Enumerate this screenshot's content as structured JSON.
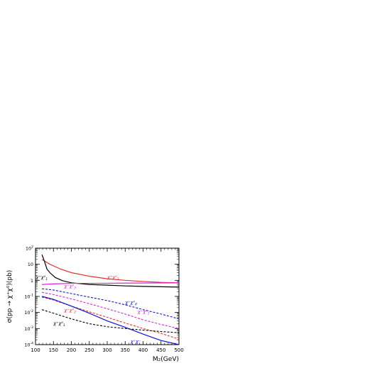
{
  "chart_data": {
    "type": "line",
    "xlabel": "M$_2$(GeV)",
    "ylabel": "σ(pp → χ⁺χ⁰)(pb)",
    "xlim": [
      100,
      500
    ],
    "ylim_log10": [
      -4,
      2
    ],
    "yscale": "log",
    "grid": false,
    "x_ticks": [
      "100",
      "150",
      "200",
      "250",
      "300",
      "350",
      "400",
      "450",
      "500"
    ],
    "y_ticks": [
      {
        "base": "10",
        "exp": "2",
        "value": 100
      },
      {
        "base": "10",
        "exp": "",
        "value": 10
      },
      {
        "base": "1",
        "exp": "",
        "value": 1
      },
      {
        "base": "10",
        "exp": "-1",
        "value": 0.1
      },
      {
        "base": "10",
        "exp": "-2",
        "value": 0.01
      },
      {
        "base": "10",
        "exp": "-3",
        "value": 0.001
      },
      {
        "base": "10",
        "exp": "-4",
        "value": 0.0001
      }
    ],
    "series": [
      {
        "id": "red-solid",
        "color": "#e8302a",
        "dash": "solid",
        "x": [
          118,
          140,
          170,
          200,
          250,
          300,
          350,
          400,
          450,
          500
        ],
        "y": [
          20,
          10,
          5,
          3.0,
          1.8,
          1.25,
          1.0,
          0.85,
          0.75,
          0.7
        ]
      },
      {
        "id": "black-solid-upper",
        "color": "#000000",
        "dash": "solid",
        "x": [
          118,
          125,
          132,
          140,
          155,
          175,
          200,
          250,
          300,
          350,
          400,
          450,
          500
        ],
        "y": [
          40,
          15,
          5,
          3.0,
          1.5,
          0.95,
          0.7,
          0.55,
          0.5,
          0.45,
          0.42,
          0.4,
          0.38
        ]
      },
      {
        "id": "magenta-solid",
        "color": "#e020e0",
        "dash": "solid",
        "x": [
          118,
          150,
          200,
          250,
          300,
          350,
          400,
          450,
          500
        ],
        "y": [
          0.55,
          0.6,
          0.65,
          0.65,
          0.66,
          0.67,
          0.68,
          0.69,
          0.7
        ]
      },
      {
        "id": "blue-dashed",
        "color": "#1010e0",
        "dash": "dashed",
        "x": [
          118,
          150,
          200,
          250,
          300,
          350,
          400,
          450,
          500
        ],
        "y": [
          0.3,
          0.25,
          0.15,
          0.09,
          0.055,
          0.03,
          0.015,
          0.008,
          0.004
        ]
      },
      {
        "id": "magenta-dashed",
        "color": "#e020e0",
        "dash": "dashed",
        "x": [
          118,
          150,
          200,
          250,
          300,
          350,
          400,
          450,
          500
        ],
        "y": [
          0.18,
          0.13,
          0.07,
          0.035,
          0.017,
          0.008,
          0.0035,
          0.0018,
          0.001
        ]
      },
      {
        "id": "red-dashed",
        "color": "#e8302a",
        "dash": "dashed",
        "x": [
          118,
          150,
          200,
          250,
          300,
          350,
          400,
          450,
          500
        ],
        "y": [
          0.09,
          0.06,
          0.025,
          0.011,
          0.005,
          0.0022,
          0.001,
          0.0005,
          0.00022
        ]
      },
      {
        "id": "blue-solid",
        "color": "#1010e0",
        "dash": "solid",
        "x": [
          118,
          150,
          200,
          250,
          300,
          350,
          400,
          450,
          500
        ],
        "y": [
          0.1,
          0.065,
          0.025,
          0.009,
          0.003,
          0.0012,
          0.00045,
          0.00018,
          0.0001
        ]
      },
      {
        "id": "black-dashed",
        "color": "#000000",
        "dash": "dashed",
        "x": [
          118,
          150,
          200,
          250,
          300,
          350,
          400,
          450,
          500
        ],
        "y": [
          0.015,
          0.009,
          0.004,
          0.002,
          0.0013,
          0.001,
          0.0008,
          0.00065,
          0.00055
        ]
      }
    ],
    "annotations": [
      {
        "id": "label-red-solid",
        "base": "χ⁺χ⁰",
        "sub": "2",
        "color": "#e8302a",
        "x": 300,
        "y": 1.3
      },
      {
        "id": "label-black-solid",
        "base": "χ⁺χ⁰",
        "sub": "1",
        "color": "#000000",
        "x": 101,
        "y": 1.25
      },
      {
        "id": "label-magenta-solid",
        "base": "χ⁺χ⁰",
        "sub": "3",
        "color": "#e020e0",
        "x": 180,
        "y": 0.35
      },
      {
        "id": "label-blue-dashed",
        "base": "χ⁺χ⁰",
        "sub": "4",
        "color": "#1010e0",
        "x": 350,
        "y": 0.035
      },
      {
        "id": "label-magenta-dashed",
        "base": "χ⁺χ⁰",
        "sub": "3",
        "color": "#e020e0",
        "x": 385,
        "y": 0.009
      },
      {
        "id": "label-red-dashed",
        "base": "χ⁺χ⁰",
        "sub": "2",
        "color": "#e8302a",
        "x": 180,
        "y": 0.011
      },
      {
        "id": "label-black-dashed",
        "base": "χ⁺χ⁰",
        "sub": "1",
        "color": "#000000",
        "x": 150,
        "y": 0.0017
      },
      {
        "id": "label-blue-solid",
        "base": "χ⁺χ⁻",
        "sub": "",
        "color": "#1010e0",
        "x": 365,
        "y": 0.00013
      }
    ]
  }
}
